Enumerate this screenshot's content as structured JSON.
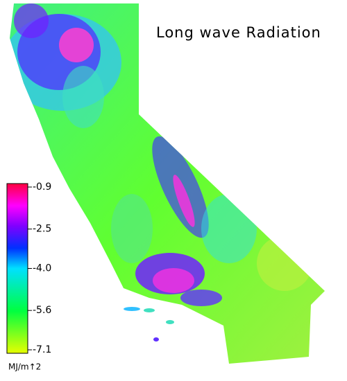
{
  "title": "Long wave Radiation",
  "colorbar": {
    "unit": "MJ/m↑2",
    "lim": [
      -7.1,
      -0.9
    ],
    "ticks": [
      -0.9,
      -2.5,
      {
        "value": -4,
        "label": "-4.0"
      },
      -5.6,
      -7.1
    ]
  }
}
